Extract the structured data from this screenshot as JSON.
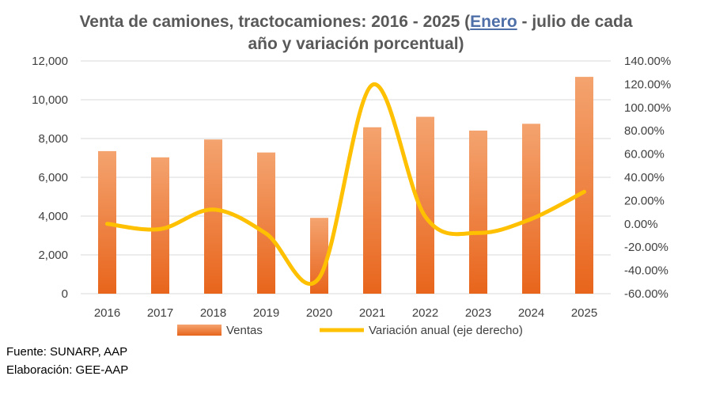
{
  "title": {
    "part1": "Venta de camiones, tractocamiones: 2016 - 2025 (",
    "highlight": "Enero",
    "part2": " - julio de cada",
    "line2": "año y variación porcentual)"
  },
  "source": "Fuente: SUNARP, AAP",
  "prepared_by": "Elaboración: GEE-AAP",
  "colors": {
    "bar": "#ed7d31",
    "line": "#ffc000",
    "grid": "#d9d9d9",
    "text": "#404040"
  },
  "chart_data": {
    "type": "bar",
    "categories": [
      "2016",
      "2017",
      "2018",
      "2019",
      "2020",
      "2021",
      "2022",
      "2023",
      "2024",
      "2025"
    ],
    "series": [
      {
        "name": "Ventas",
        "type": "bar",
        "axis": "left",
        "values": [
          7350,
          7030,
          7950,
          7280,
          3910,
          8580,
          9120,
          8410,
          8760,
          11180
        ]
      },
      {
        "name": "Variación anual (eje derecho)",
        "type": "line",
        "axis": "right",
        "values": [
          0.0,
          -4.5,
          12.3,
          -8.4,
          -46.3,
          119.4,
          6.3,
          -7.8,
          4.2,
          27.6
        ]
      }
    ],
    "y_left": {
      "min": 0,
      "max": 12000,
      "ticks": [
        "0",
        "2,000",
        "4,000",
        "6,000",
        "8,000",
        "10,000",
        "12,000"
      ]
    },
    "y_right": {
      "min": -60,
      "max": 140,
      "ticks": [
        "-60.00%",
        "-40.00%",
        "-20.00%",
        "0.00%",
        "20.00%",
        "40.00%",
        "60.00%",
        "80.00%",
        "100.00%",
        "120.00%",
        "140.00%"
      ]
    },
    "grid": true,
    "legend": "bottom"
  }
}
